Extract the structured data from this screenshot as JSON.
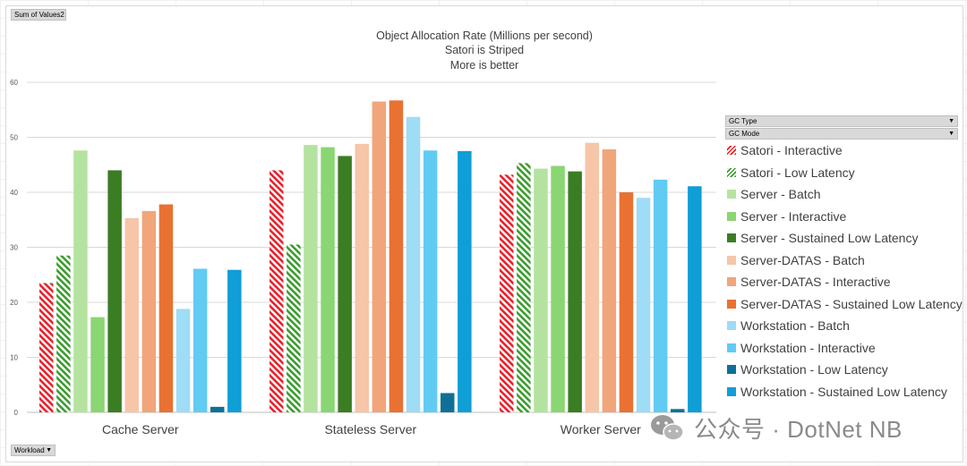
{
  "pivot": {
    "values_field": "Sum of Values2",
    "axis_field": "Workload",
    "legend_fields": [
      "GC Type",
      "GC Mode"
    ]
  },
  "watermark": "公众号 · DotNet NB",
  "colors": {
    "grid": "#d9d9d9",
    "text": "#404040"
  },
  "chart_data": {
    "type": "bar",
    "title": "Object Allocation Rate (Millions per second)",
    "subtitle_lines": [
      "Satori is Striped",
      "More is better"
    ],
    "xlabel": "",
    "ylabel": "",
    "ylim": [
      0,
      60
    ],
    "yticks": [
      0,
      10,
      20,
      30,
      40,
      50,
      60
    ],
    "grid": true,
    "legend_position": "right",
    "categories": [
      "Cache Server",
      "Stateless Server",
      "Worker Server"
    ],
    "series": [
      {
        "name": "Satori - Interactive",
        "color": "#e8202a",
        "pattern": "stripe",
        "values": [
          23.5,
          44.0,
          43.2
        ]
      },
      {
        "name": "Satori - Low Latency",
        "color": "#3b9b2e",
        "pattern": "stripe",
        "values": [
          28.5,
          30.5,
          45.3
        ]
      },
      {
        "name": "Server - Batch",
        "color": "#b4e3a0",
        "pattern": "solid",
        "values": [
          47.6,
          48.6,
          44.3
        ]
      },
      {
        "name": "Server - Interactive",
        "color": "#8ad672",
        "pattern": "solid",
        "values": [
          17.3,
          48.2,
          44.8
        ]
      },
      {
        "name": "Server - Sustained Low Latency",
        "color": "#3b7d23",
        "pattern": "solid",
        "values": [
          44.0,
          46.6,
          43.8
        ]
      },
      {
        "name": "Server-DATAS - Batch",
        "color": "#f7c5a8",
        "pattern": "solid",
        "values": [
          35.3,
          48.8,
          49.0
        ]
      },
      {
        "name": "Server-DATAS - Interactive",
        "color": "#f1a57a",
        "pattern": "solid",
        "values": [
          36.6,
          56.5,
          47.8
        ]
      },
      {
        "name": "Server-DATAS - Sustained Low Latency",
        "color": "#e97132",
        "pattern": "solid",
        "values": [
          37.8,
          56.7,
          40.0
        ]
      },
      {
        "name": "Workstation - Batch",
        "color": "#9fdcf6",
        "pattern": "solid",
        "values": [
          18.8,
          53.7,
          39.0
        ]
      },
      {
        "name": "Workstation - Interactive",
        "color": "#61cbf3",
        "pattern": "solid",
        "values": [
          26.1,
          47.6,
          42.3
        ]
      },
      {
        "name": "Workstation - Low Latency",
        "color": "#0e7097",
        "pattern": "solid",
        "values": [
          1.0,
          3.5,
          0.6
        ]
      },
      {
        "name": "Workstation - Sustained Low Latency",
        "color": "#0f9ed5",
        "pattern": "solid",
        "values": [
          25.9,
          47.5,
          41.1
        ]
      }
    ]
  }
}
